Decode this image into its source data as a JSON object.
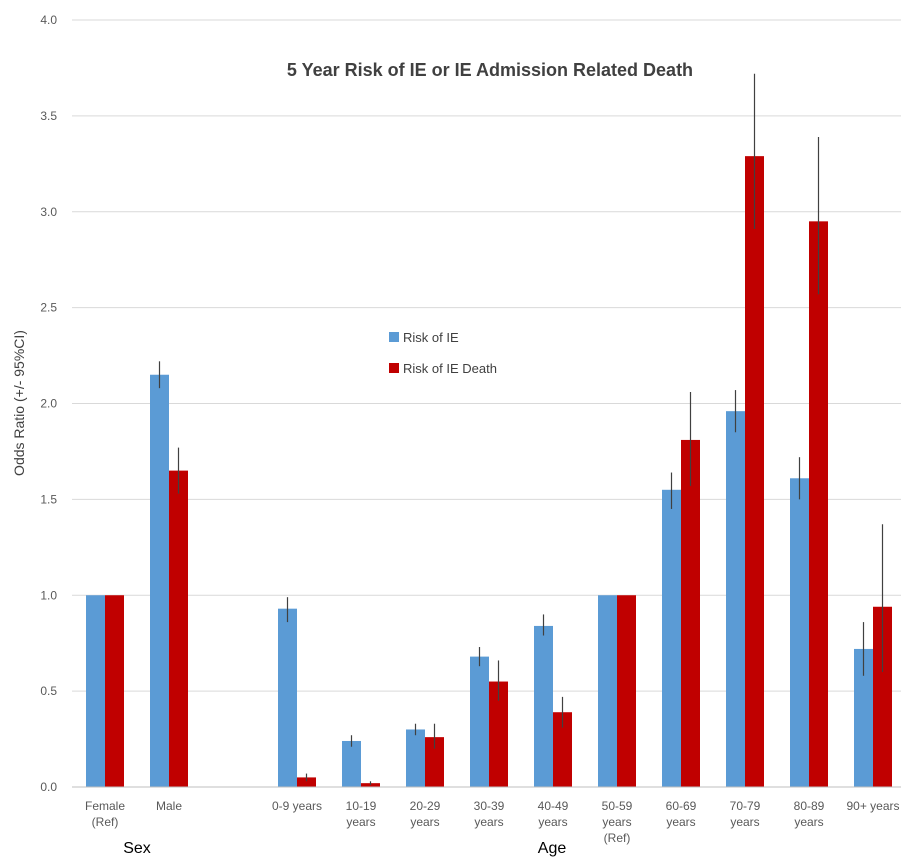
{
  "chart_data": {
    "type": "bar",
    "title": "5 Year Risk of IE or IE Admission Related Death",
    "ylabel": "Odds Ratio (+/- 95%CI)",
    "ylim": [
      0,
      4.0
    ],
    "yticks": [
      "0.0",
      "0.5",
      "1.0",
      "1.5",
      "2.0",
      "2.5",
      "3.0",
      "3.5",
      "4.0"
    ],
    "grid": true,
    "legend_position": "center",
    "categories": [
      [
        "Female",
        "(Ref)"
      ],
      [
        "Male"
      ],
      [
        "0-9 years"
      ],
      [
        "10-19",
        "years"
      ],
      [
        "20-29",
        "years"
      ],
      [
        "30-39",
        "years"
      ],
      [
        "40-49",
        "years"
      ],
      [
        "50-59",
        "years",
        "(Ref)"
      ],
      [
        "60-69",
        "years"
      ],
      [
        "70-79",
        "years"
      ],
      [
        "80-89",
        "years"
      ],
      [
        "90+ years"
      ]
    ],
    "groups": [
      {
        "label": "Sex"
      },
      {
        "label": "Age"
      }
    ],
    "series": [
      {
        "name": "Risk of IE",
        "color": "#5b9bd5",
        "values": [
          1.0,
          2.15,
          0.93,
          0.24,
          0.3,
          0.68,
          0.84,
          1.0,
          1.55,
          1.96,
          1.61,
          0.72
        ],
        "ci_low": [
          null,
          2.08,
          0.86,
          0.21,
          0.27,
          0.63,
          0.79,
          null,
          1.45,
          1.85,
          1.5,
          0.58
        ],
        "ci_high": [
          null,
          2.22,
          0.99,
          0.27,
          0.33,
          0.73,
          0.9,
          null,
          1.64,
          2.07,
          1.72,
          0.86
        ]
      },
      {
        "name": "Risk of IE Death",
        "color": "#c00000",
        "values": [
          1.0,
          1.65,
          0.05,
          0.02,
          0.26,
          0.55,
          0.39,
          1.0,
          1.81,
          3.29,
          2.95,
          0.94
        ],
        "ci_low": [
          null,
          1.53,
          0.03,
          0.01,
          0.2,
          0.45,
          0.31,
          null,
          1.57,
          2.91,
          2.57,
          0.6
        ],
        "ci_high": [
          null,
          1.77,
          0.07,
          0.03,
          0.33,
          0.66,
          0.47,
          null,
          2.06,
          3.72,
          3.39,
          1.37
        ]
      }
    ]
  }
}
